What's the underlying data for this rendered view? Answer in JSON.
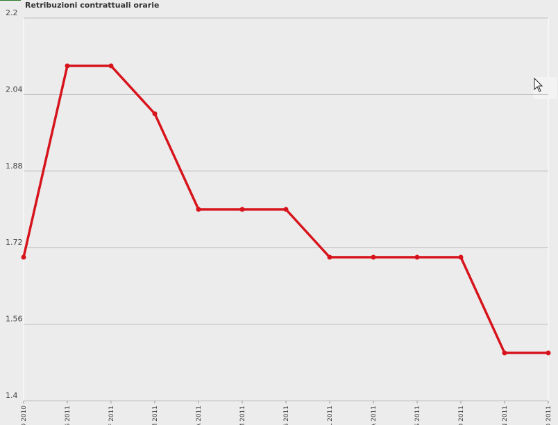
{
  "chart_data": {
    "type": "line",
    "title": "Retribuzioni contrattuali orarie",
    "categories": [
      "O 2010",
      "G 2011",
      "F 2011",
      "M 2011",
      "A 2011",
      "M 2011",
      "G 2011",
      "L 2011",
      "A 2011",
      "S 2011",
      "O 2011",
      "N 2011",
      "D 2011"
    ],
    "series": [
      {
        "color": "#d7141c",
        "values": [
          1.7,
          2.1,
          2.1,
          2.0,
          1.8,
          1.8,
          1.8,
          1.7,
          1.7,
          1.7,
          1.7,
          1.5,
          1.5
        ]
      }
    ],
    "ylim": [
      1.4,
      2.2
    ],
    "yticks": [
      1.4,
      1.56,
      1.72,
      1.88,
      2.04,
      2.2
    ],
    "grid": true
  }
}
